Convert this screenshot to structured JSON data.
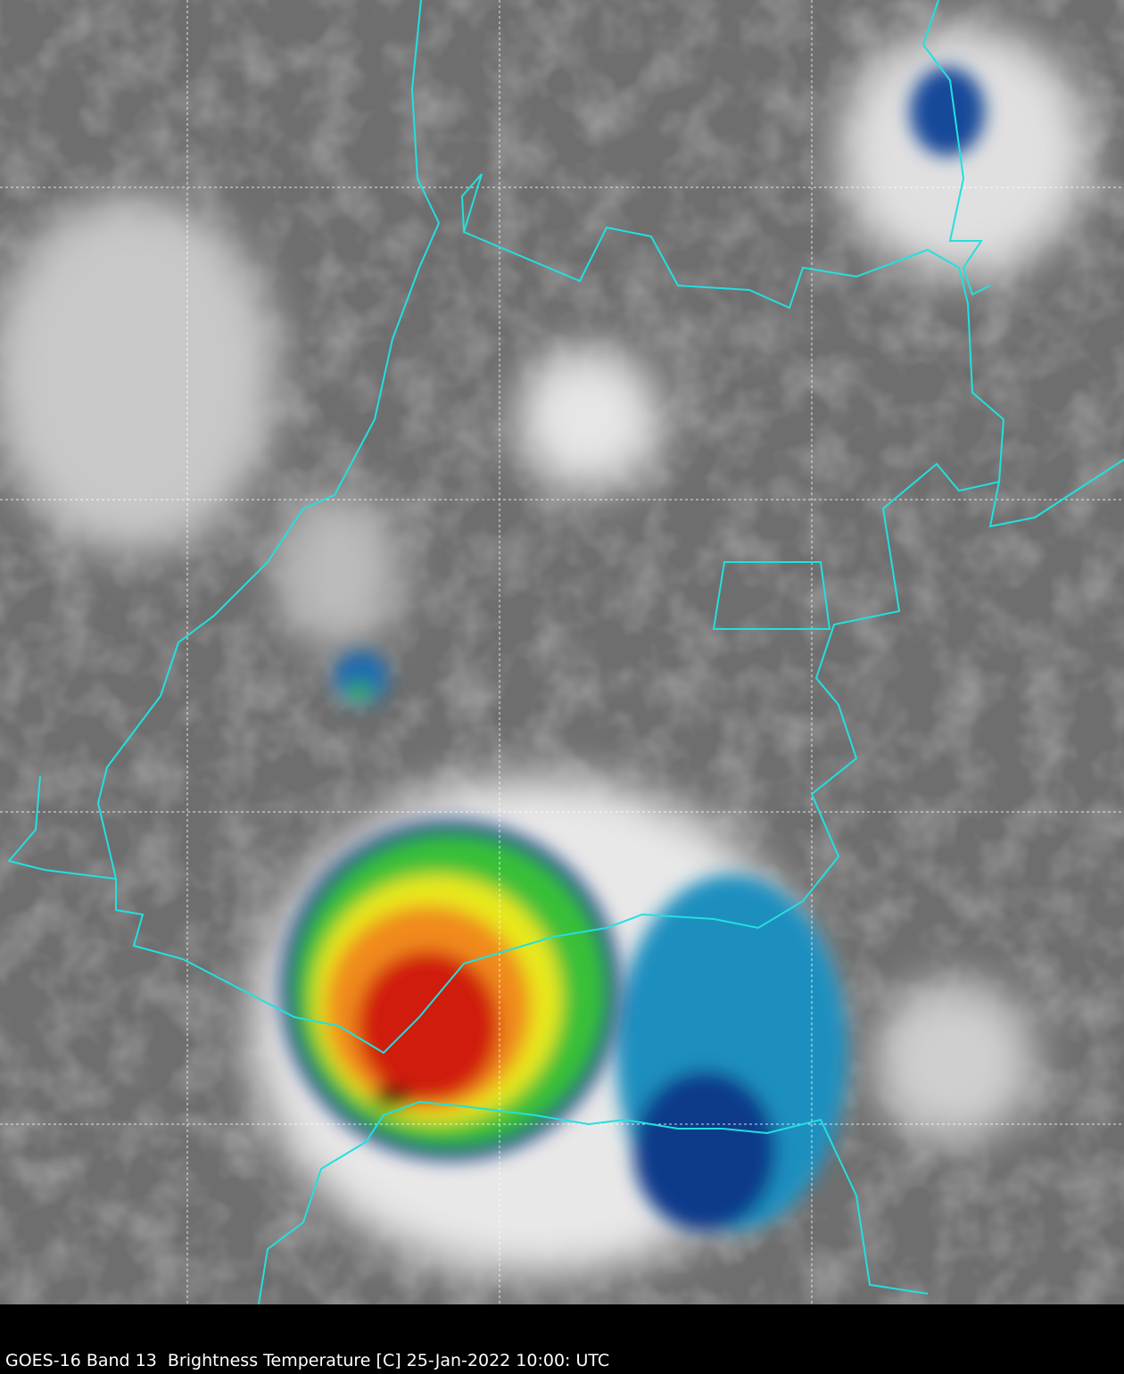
{
  "caption": "GOES-16 Band 13  Brightness Temperature [C] 25-Jan-2022 10:00: UTC"
}
